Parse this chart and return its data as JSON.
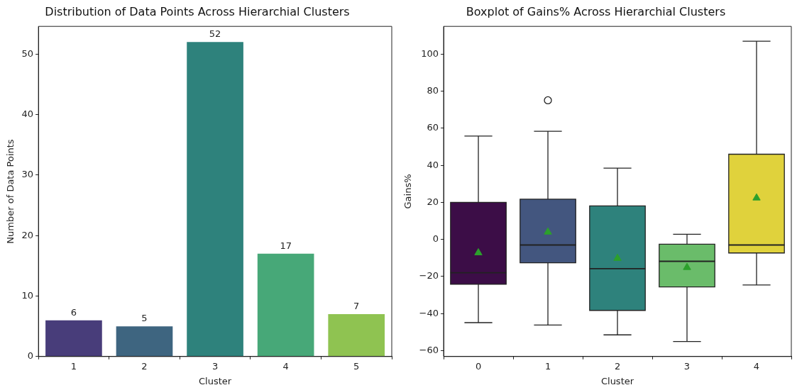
{
  "chart_data": [
    {
      "type": "bar",
      "title": "Distribution of Data Points Across Hierarchial Clusters",
      "xlabel": "Cluster",
      "ylabel": "Number of Data Points",
      "categories": [
        "1",
        "2",
        "3",
        "4",
        "5"
      ],
      "values": [
        6,
        5,
        52,
        17,
        7
      ],
      "colors": [
        "#483d7a",
        "#3e6580",
        "#2e827c",
        "#47a878",
        "#8fc351"
      ],
      "ylim": [
        0,
        54.6
      ],
      "yticks": [
        0,
        10,
        20,
        30,
        40,
        50
      ],
      "data_labels": true,
      "grid": false,
      "legend": false
    },
    {
      "type": "box",
      "title": "Boxplot of Gains% Across Hierarchial Clusters",
      "xlabel": "Cluster",
      "ylabel": "Gains%",
      "categories": [
        "0",
        "1",
        "2",
        "3",
        "4"
      ],
      "colors": [
        "#3c0d47",
        "#43567f",
        "#2e827c",
        "#6abc6a",
        "#e0d23c"
      ],
      "boxes": [
        {
          "low": -44.9,
          "q1": -24.2,
          "median": -18,
          "q3": 20,
          "high": 55.8,
          "mean": -7.2
        },
        {
          "low": -46.2,
          "q1": -12.6,
          "median": -3,
          "q3": 21.7,
          "high": 58.4,
          "mean": 4,
          "outliers": [
            75.1
          ]
        },
        {
          "low": -51.5,
          "q1": -38.3,
          "median": -15.8,
          "q3": 18.1,
          "high": 38.5,
          "mean": -10.2
        },
        {
          "low": -55.1,
          "q1": -25.6,
          "median": -11.8,
          "q3": -2.6,
          "high": 2.8,
          "mean": -15.1
        },
        {
          "low": -24.6,
          "q1": -7.3,
          "median": -3,
          "q3": 46,
          "high": 107,
          "mean": 22.4
        }
      ],
      "ylim": [
        -63.2,
        115
      ],
      "yticks": [
        {
          "value": -60,
          "label": "−60"
        },
        {
          "value": -40,
          "label": "−40"
        },
        {
          "value": -20,
          "label": "−20"
        },
        0,
        20,
        40,
        60,
        80,
        100
      ],
      "grid": false,
      "legend": false,
      "marker": "triangle"
    }
  ]
}
